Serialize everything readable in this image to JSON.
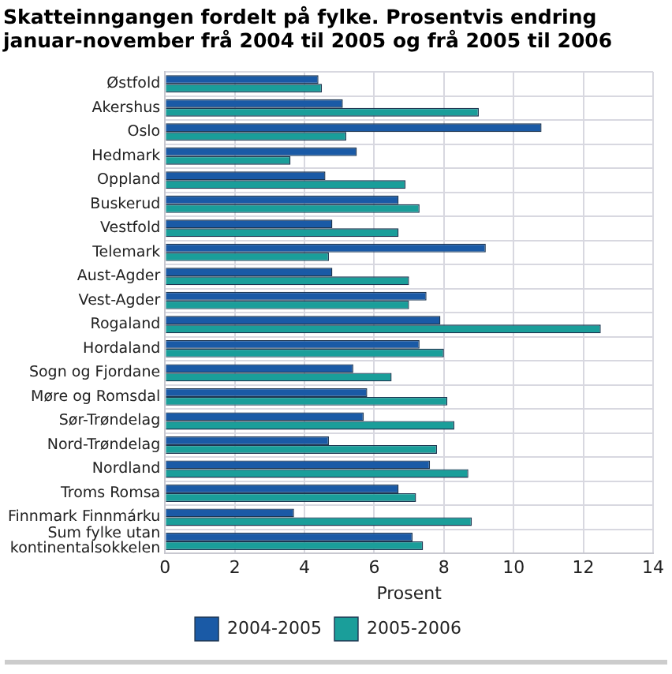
{
  "chart_data": {
    "type": "bar",
    "orientation": "horizontal",
    "title": "Skatteinngangen fordelt på fylke. Prosentvis endring januar-november frå 2004 til 2005 og frå 2005 til 2006",
    "xlabel": "Prosent",
    "categories": [
      "Østfold",
      "Akershus",
      "Oslo",
      "Hedmark",
      "Oppland",
      "Buskerud",
      "Vestfold",
      "Telemark",
      "Aust-Agder",
      "Vest-Agder",
      "Rogaland",
      "Hordaland",
      "Sogn og Fjordane",
      "Møre og Romsdal",
      "Sør-Trøndelag",
      "Nord-Trøndelag",
      "Nordland",
      "Troms Romsa",
      "Finnmark Finnmárku",
      "Sum fylke utan kontinentalsokkelen"
    ],
    "series": [
      {
        "name": "2004-2005",
        "color": "#1a5aa6",
        "values": [
          4.4,
          5.1,
          10.8,
          5.5,
          4.6,
          6.7,
          4.8,
          9.2,
          4.8,
          7.5,
          7.9,
          7.3,
          5.4,
          5.8,
          5.7,
          4.7,
          7.6,
          6.7,
          3.7,
          7.1
        ]
      },
      {
        "name": "2005-2006",
        "color": "#1a9e9a",
        "values": [
          4.5,
          9.0,
          5.2,
          3.6,
          6.9,
          7.3,
          6.7,
          4.7,
          7.0,
          7.0,
          12.5,
          8.0,
          6.5,
          8.1,
          8.3,
          7.8,
          8.7,
          7.2,
          8.8,
          7.4
        ]
      }
    ],
    "xlim": [
      0,
      14
    ],
    "xticks": [
      0,
      2,
      4,
      6,
      8,
      10,
      12,
      14
    ],
    "grid": "x",
    "legend": "bottom"
  }
}
